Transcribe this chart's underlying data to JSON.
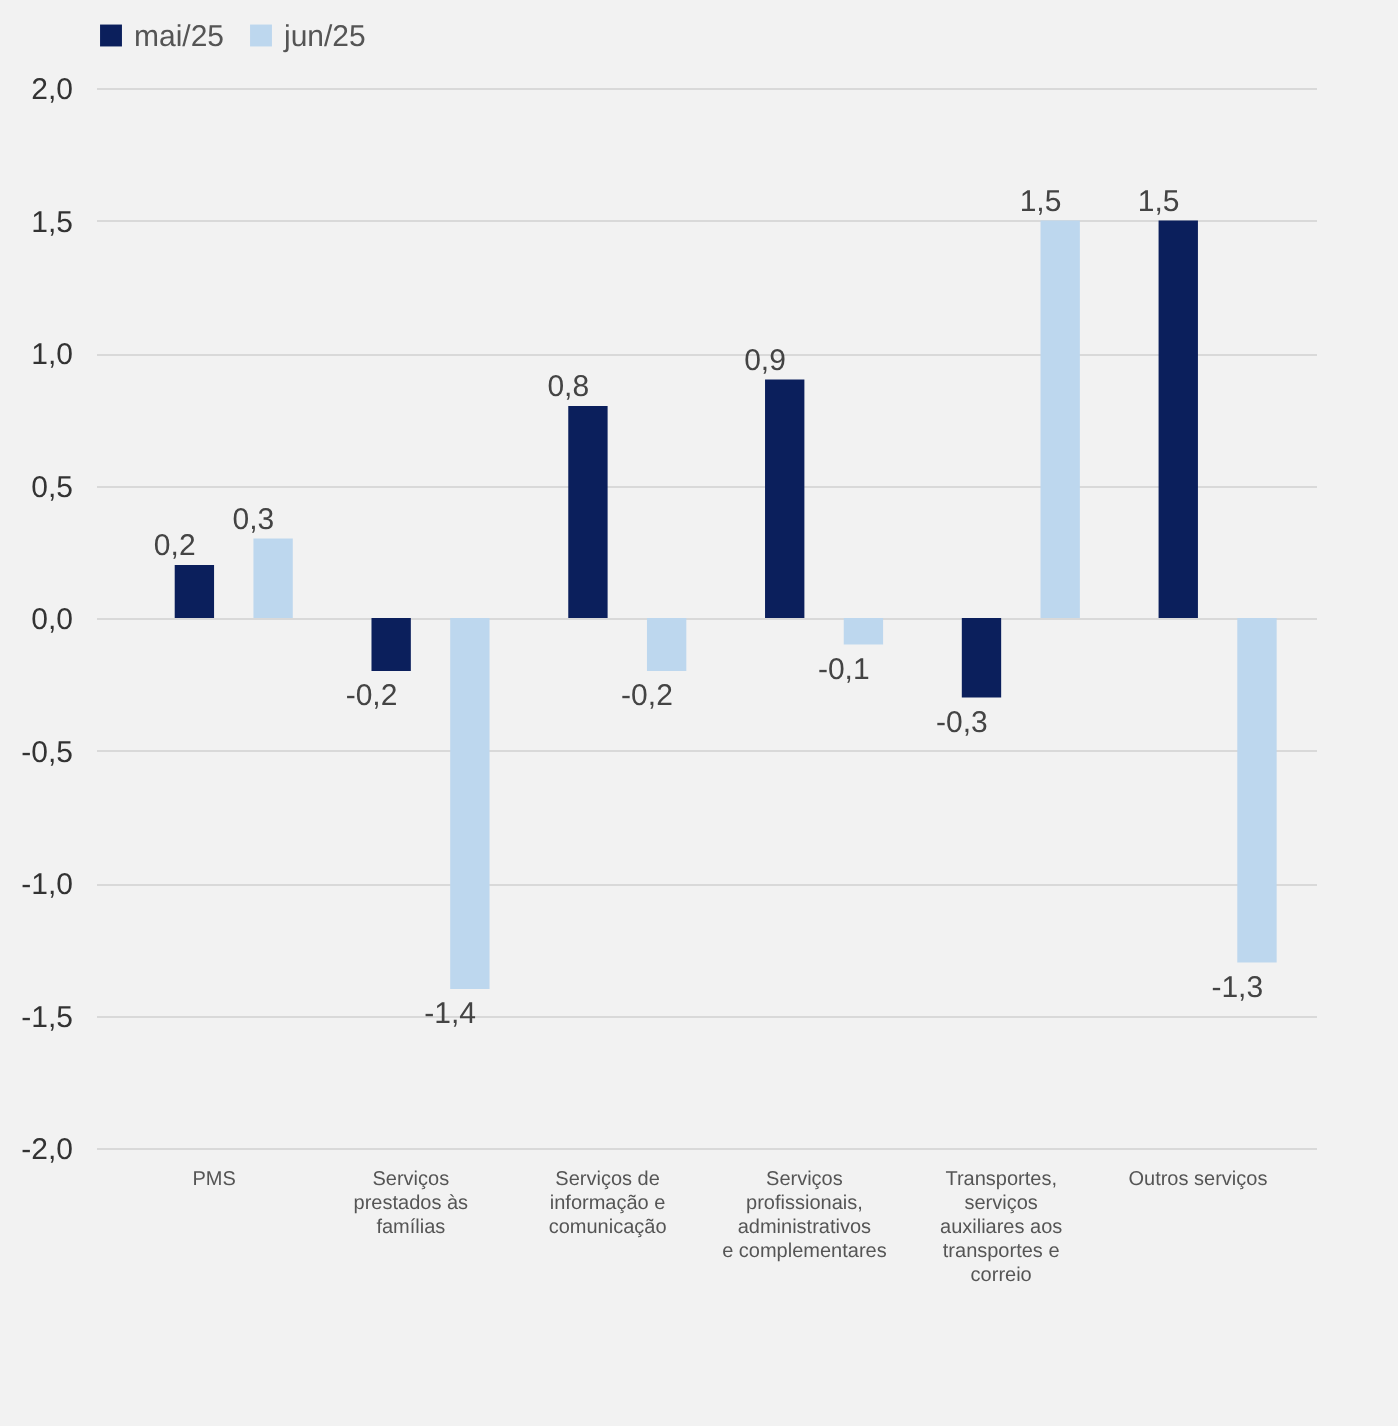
{
  "chart_data": {
    "type": "bar",
    "categories": [
      "PMS",
      "Serviços prestados às famílias",
      "Serviços de informação e comunicação",
      "Serviços profissionais, administrativos e complementares",
      "Transportes, serviços auxiliares aos transportes e correio",
      "Outros serviços"
    ],
    "series": [
      {
        "name": "mai/25",
        "color": "#0b1f5c",
        "values": [
          0.2,
          -0.2,
          0.8,
          0.9,
          -0.3,
          1.5
        ],
        "value_labels": [
          "0,2",
          "-0,2",
          "0,8",
          "0,9",
          "-0,3",
          "1,5"
        ]
      },
      {
        "name": "jun/25",
        "color": "#bdd7ee",
        "values": [
          0.3,
          -1.4,
          -0.2,
          -0.1,
          1.5,
          -1.3
        ],
        "value_labels": [
          "0,3",
          "-1,4",
          "-0,2",
          "-0,1",
          "1,5",
          "-1,3"
        ]
      }
    ],
    "ylim": [
      -2,
      2
    ],
    "yticks": [
      {
        "value": -2,
        "label": "-2,0"
      },
      {
        "value": -1.5,
        "label": "-1,5"
      },
      {
        "value": -1,
        "label": "-1,0"
      },
      {
        "value": -0.5,
        "label": "-0,5"
      },
      {
        "value": 0,
        "label": "0,0"
      },
      {
        "value": 0.5,
        "label": "0,5"
      },
      {
        "value": 1,
        "label": "1,0"
      },
      {
        "value": 1.5,
        "label": "1,5"
      },
      {
        "value": 2,
        "label": "2,0"
      }
    ],
    "grid": "y",
    "legend": "top"
  }
}
